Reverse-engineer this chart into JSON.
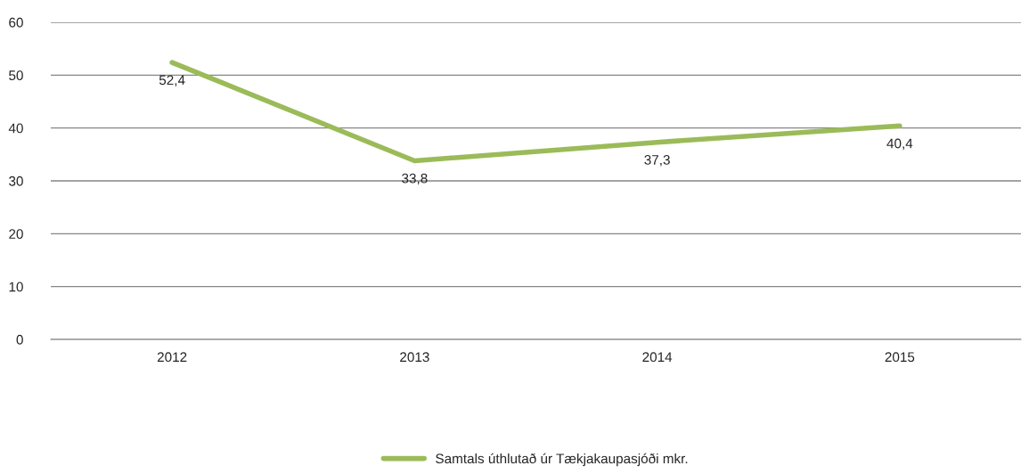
{
  "chart_data": {
    "type": "line",
    "categories": [
      "2012",
      "2013",
      "2014",
      "2015"
    ],
    "series": [
      {
        "name": "Samtals úthlutað úr Tækjakaupasjóði mkr.",
        "color": "#9bbb59",
        "values": [
          52.4,
          33.8,
          37.3,
          40.4
        ],
        "value_labels": [
          "52,4",
          "33,8",
          "37,3",
          "40,4"
        ]
      }
    ],
    "ylim": [
      0,
      60
    ],
    "yticks": [
      0,
      10,
      20,
      30,
      40,
      50,
      60
    ],
    "grid": "y",
    "legend": "bottom",
    "marker": "none",
    "line_style": "solid"
  }
}
